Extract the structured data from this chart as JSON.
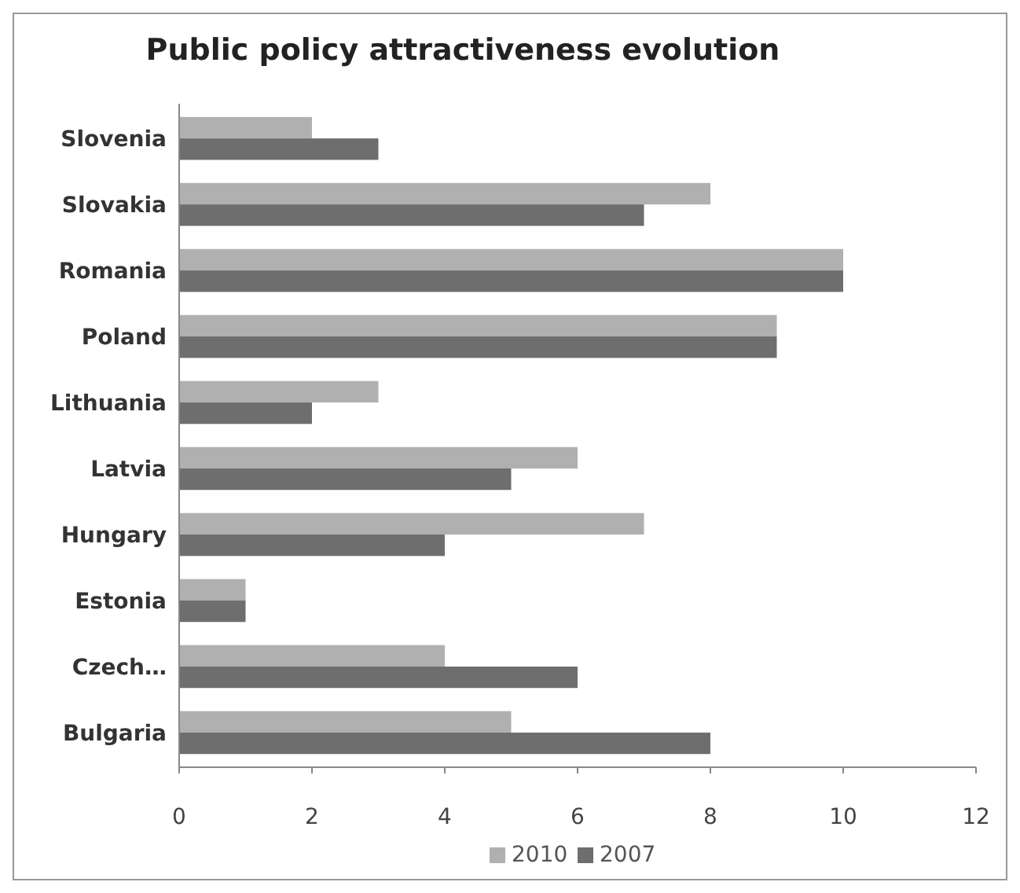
{
  "chart_data": {
    "type": "bar",
    "orientation": "horizontal",
    "title": "Public policy attractiveness evolution",
    "categories": [
      "Slovenia",
      "Slovakia",
      "Romania",
      "Poland",
      "Lithuania",
      "Latvia",
      "Hungary",
      "Estonia",
      "Czech…",
      "Bulgaria"
    ],
    "series": [
      {
        "name": "2010",
        "color": "#b0b0b0",
        "values": [
          2,
          8,
          10,
          9,
          3,
          6,
          7,
          1,
          4,
          5
        ]
      },
      {
        "name": "2007",
        "color": "#6e6e6e",
        "values": [
          3,
          7,
          10,
          9,
          2,
          5,
          4,
          1,
          6,
          8
        ]
      }
    ],
    "xlim": [
      0,
      12
    ],
    "xticks": [
      0,
      2,
      4,
      6,
      8,
      10,
      12
    ],
    "grid": false,
    "legend": "bottom"
  }
}
